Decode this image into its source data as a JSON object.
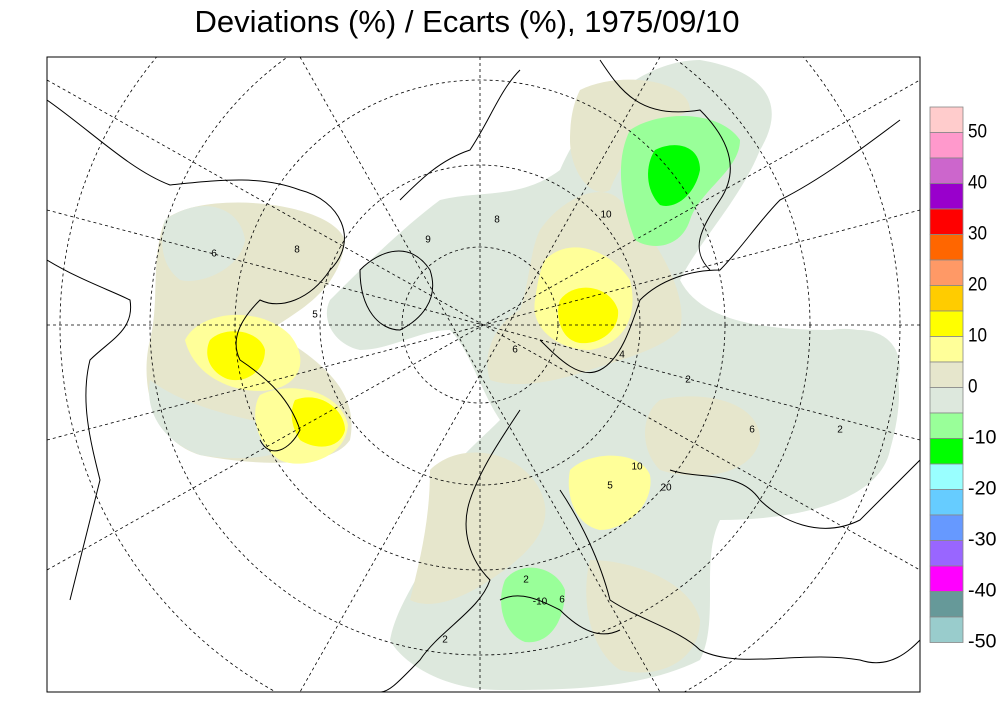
{
  "title": "Deviations (%) / Ecarts (%), 1975/09/10",
  "legend": {
    "colors": [
      "#ffcccc",
      "#ff99cc",
      "#cc66cc",
      "#9900cc",
      "#ff0000",
      "#ff6600",
      "#ff9966",
      "#ffcc00",
      "#ffff00",
      "#ffff99",
      "#e6e6cc",
      "#dde8dd",
      "#99ff99",
      "#00ff00",
      "#99ffff",
      "#66ccff",
      "#6699ff",
      "#9966ff",
      "#ff00ff",
      "#669999",
      "#99cccc"
    ],
    "labels": [
      "50",
      "40",
      "30",
      "20",
      "10",
      "0",
      "-10",
      "-20",
      "-30",
      "-40",
      "-50"
    ]
  },
  "contour_labels": [
    "8",
    "6",
    "9",
    "5",
    "8",
    "10",
    "6",
    "4",
    "2",
    "6",
    "2",
    "10",
    "5",
    "20",
    "6",
    "2",
    "-10",
    "2"
  ]
}
